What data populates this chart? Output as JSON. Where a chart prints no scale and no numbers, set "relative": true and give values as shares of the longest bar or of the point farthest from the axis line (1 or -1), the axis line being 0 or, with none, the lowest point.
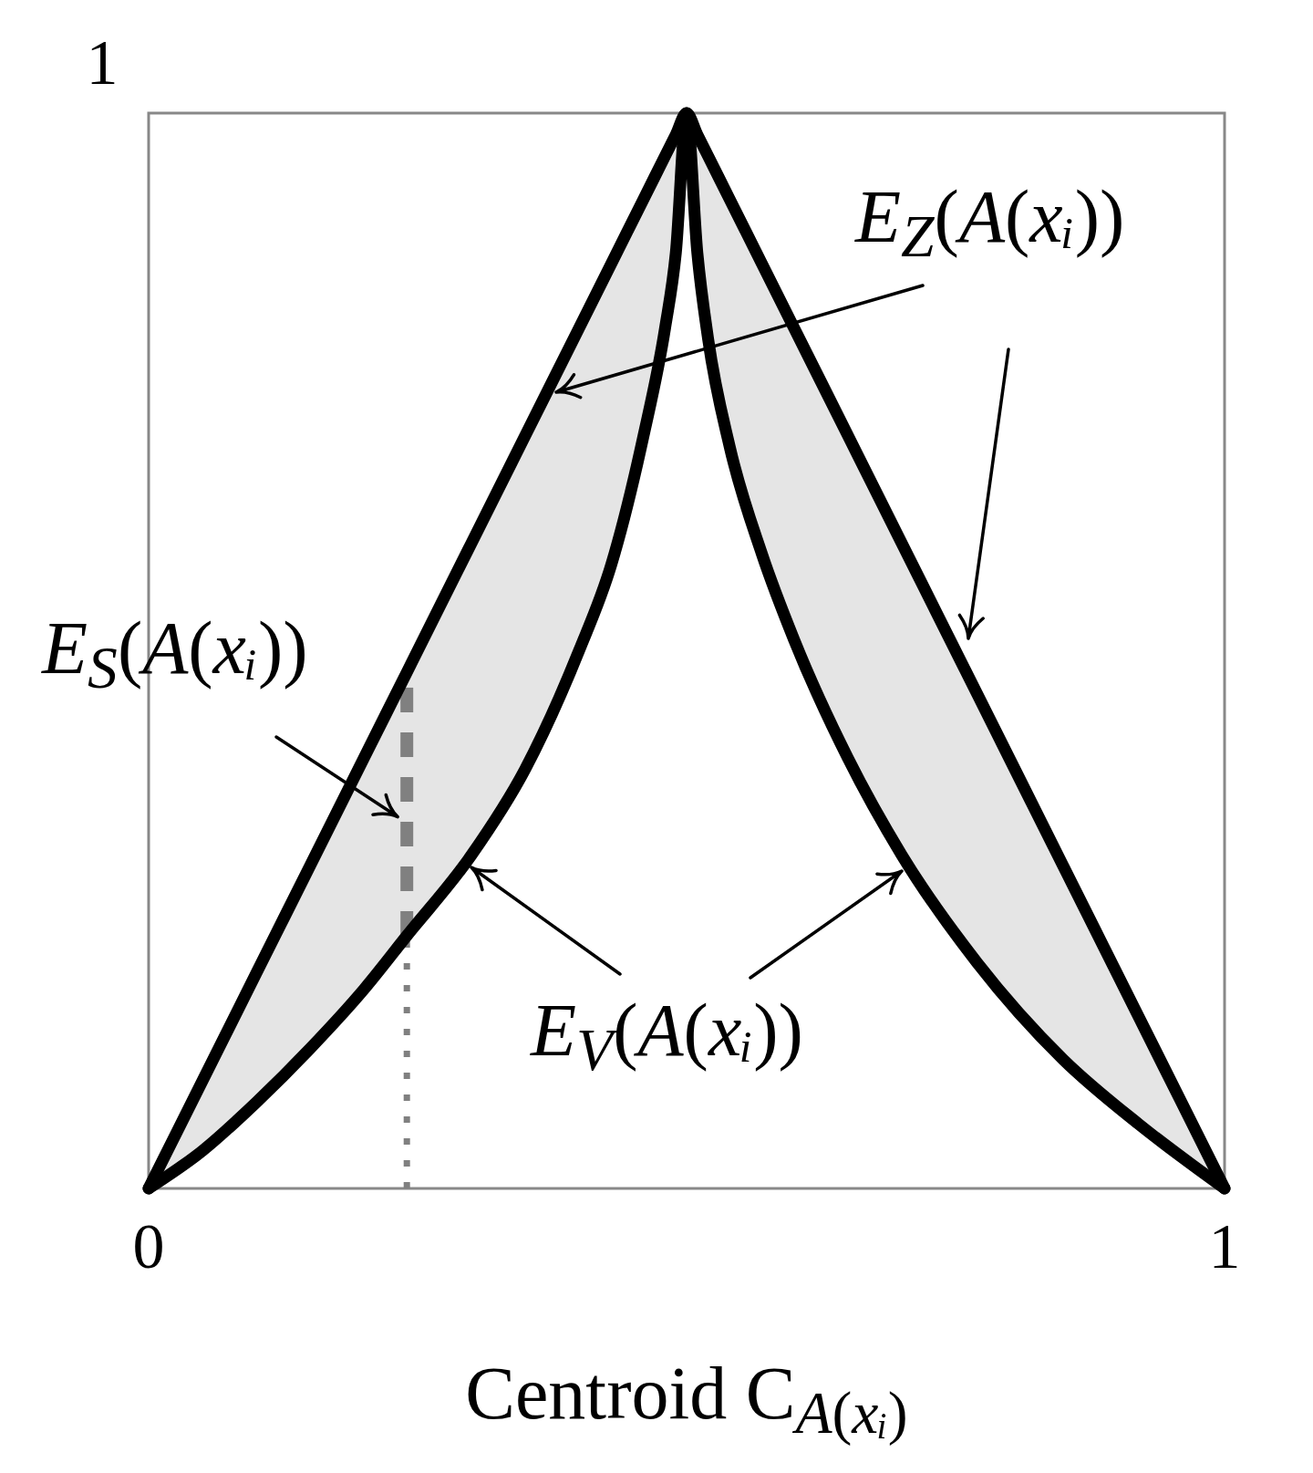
{
  "chart_data": {
    "type": "line",
    "xlabel": "Centroid C$_{A(xᵢ)}$",
    "xlim": [
      0,
      1
    ],
    "xticks": [
      0,
      1
    ],
    "relative": true,
    "annotations": [
      "1",
      {
        "text": "E$_{S}$(A(xᵢ))",
        "x": 0.24,
        "y": 0.34
      }
    ],
    "series": [
      {
        "color": "#808080",
        "line_style": "dashed",
        "x": [
          0.24,
          0.24
        ],
        "values": [
          0.235,
          0.48
        ]
      },
      {
        "color": "#808080",
        "line_style": "dotted",
        "x": [
          0.24,
          0.24
        ],
        "values": [
          0,
          0.235
        ]
      },
      {
        "name": "E$_{Z}$(A(xᵢ))",
        "color": "#000000",
        "line_style": "solid",
        "x": [
          0,
          0.05,
          0.1,
          0.15,
          0.2,
          0.24,
          0.3,
          0.35,
          0.4,
          0.43,
          0.46,
          0.48,
          0.49,
          0.5,
          0.51,
          0.52,
          0.54,
          0.57,
          0.6,
          0.65,
          0.7,
          0.77,
          0.85,
          0.92,
          1
        ],
        "values": [
          0,
          0.1,
          0.2,
          0.3,
          0.4,
          0.48,
          0.6,
          0.7,
          0.8,
          0.86,
          0.92,
          0.96,
          0.98,
          1,
          0.98,
          0.96,
          0.92,
          0.86,
          0.8,
          0.7,
          0.6,
          0.46,
          0.3,
          0.16,
          0
        ],
        "lower": [
          0,
          0.035,
          0.08,
          0.13,
          0.185,
          0.235,
          0.31,
          0.39,
          0.5,
          0.58,
          0.7,
          0.8,
          0.87,
          1,
          0.87,
          0.79,
          0.69,
          0.59,
          0.51,
          0.4,
          0.31,
          0.21,
          0.12,
          0.06,
          0
        ],
        "upper": [
          0,
          0.1,
          0.2,
          0.3,
          0.4,
          0.48,
          0.6,
          0.7,
          0.8,
          0.86,
          0.92,
          0.96,
          0.98,
          1,
          0.98,
          0.96,
          0.92,
          0.86,
          0.8,
          0.7,
          0.6,
          0.46,
          0.3,
          0.16,
          0
        ]
      },
      {
        "name": "E$_{V}$(A(xᵢ))",
        "color": "#000000",
        "line_style": "solid",
        "x": [
          0,
          0.05,
          0.1,
          0.15,
          0.2,
          0.24,
          0.3,
          0.35,
          0.4,
          0.43,
          0.46,
          0.48,
          0.49,
          0.5,
          0.51,
          0.52,
          0.54,
          0.57,
          0.6,
          0.65,
          0.7,
          0.77,
          0.85,
          0.92,
          1
        ],
        "values": [
          0,
          0.035,
          0.08,
          0.13,
          0.185,
          0.235,
          0.31,
          0.39,
          0.5,
          0.58,
          0.7,
          0.8,
          0.87,
          1,
          0.87,
          0.79,
          0.69,
          0.59,
          0.51,
          0.4,
          0.31,
          0.21,
          0.12,
          0.06,
          0
        ]
      }
    ]
  }
}
